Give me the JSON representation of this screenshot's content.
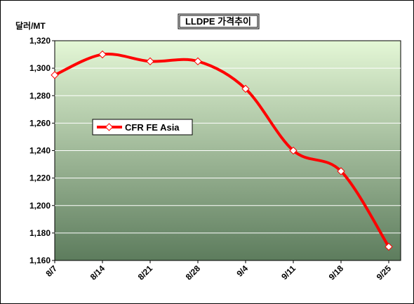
{
  "chart_data": {
    "type": "line",
    "title": "LLDPE 가격추이",
    "ylabel": "달러/MT",
    "xlabel": "",
    "categories": [
      "8/7",
      "8/14",
      "8/21",
      "8/28",
      "9/4",
      "9/11",
      "9/18",
      "9/25"
    ],
    "series": [
      {
        "name": "CFR FE Asia",
        "values": [
          1295,
          1310,
          1305,
          1305,
          1285,
          1240,
          1225,
          1170
        ]
      }
    ],
    "ylim": [
      1160,
      1320
    ],
    "yticks": [
      1160,
      1180,
      1200,
      1220,
      1240,
      1260,
      1280,
      1300,
      1320
    ],
    "ytick_labels": [
      "1,160",
      "1,180",
      "1,200",
      "1,220",
      "1,240",
      "1,260",
      "1,280",
      "1,300",
      "1,320"
    ],
    "grid": true,
    "legend_position": "left-center",
    "colors": {
      "line": "#ff0000",
      "marker_fill": "#ffffff",
      "plot_top": "#e4f7d6",
      "plot_bottom": "#5d7c5d",
      "grid": "#ffffff"
    }
  }
}
